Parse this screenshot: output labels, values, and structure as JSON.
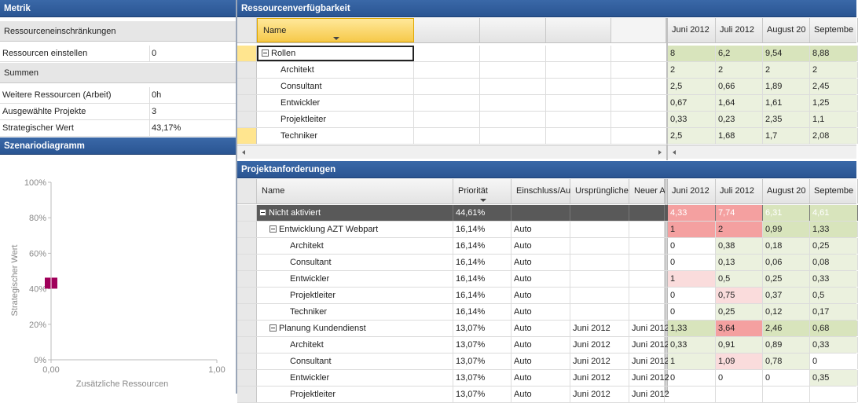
{
  "metric": {
    "title": "Metrik",
    "section_constraints": "Ressourceneinschränkungen",
    "set_resources_label": "Ressourcen einstellen",
    "set_resources_value": "0",
    "section_sums": "Summen",
    "sum_rows": [
      {
        "label": "Weitere Ressourcen (Arbeit)",
        "value": "0h"
      },
      {
        "label": "Ausgewählte Projekte",
        "value": "3"
      },
      {
        "label": "Strategischer Wert",
        "value": "43,17%"
      }
    ]
  },
  "scenario": {
    "title": "Szenariodiagramm",
    "chart_data": {
      "type": "scatter",
      "xlabel": "Zusätzliche Ressourcen",
      "ylabel": "Strategischer Wert",
      "x_ticks": [
        "0,00",
        "1,00"
      ],
      "y_ticks": [
        "0%",
        "20%",
        "40%",
        "60%",
        "80%",
        "100%"
      ],
      "xlim": [
        0,
        1
      ],
      "ylim": [
        0,
        100
      ],
      "points": [
        {
          "x": 0,
          "y": 43.17
        }
      ],
      "marker_color": "#a0005a"
    }
  },
  "availability": {
    "title": "Ressourcenverfügbarkeit",
    "name_header": "Name",
    "months": [
      "Juni 2012",
      "Juli 2012",
      "August 20",
      "Septembe"
    ],
    "rows": [
      {
        "name": "Rollen",
        "group": true,
        "values": [
          "8",
          "6,2",
          "9,54",
          "8,88"
        ],
        "shade": [
          "g",
          "g",
          "g",
          "g"
        ]
      },
      {
        "name": "Architekt",
        "values": [
          "2",
          "2",
          "2",
          "2"
        ],
        "shade": [
          "gl",
          "gl",
          "gl",
          "gl"
        ]
      },
      {
        "name": "Consultant",
        "values": [
          "2,5",
          "0,66",
          "1,89",
          "2,45"
        ],
        "shade": [
          "gl",
          "gl",
          "gl",
          "gl"
        ]
      },
      {
        "name": "Entwickler",
        "values": [
          "0,67",
          "1,64",
          "1,61",
          "1,25"
        ],
        "shade": [
          "gl",
          "gl",
          "gl",
          "gl"
        ]
      },
      {
        "name": "Projektleiter",
        "values": [
          "0,33",
          "0,23",
          "2,35",
          "1,1"
        ],
        "shade": [
          "gl",
          "gl",
          "gl",
          "gl"
        ]
      },
      {
        "name": "Techniker",
        "values": [
          "2,5",
          "1,68",
          "1,7",
          "2,08"
        ],
        "shade": [
          "gl",
          "gl",
          "gl",
          "gl"
        ]
      }
    ]
  },
  "requirements": {
    "title": "Projektanforderungen",
    "headers": {
      "name": "Name",
      "priority": "Priorität",
      "inclusion": "Einschluss/Au",
      "original": "Ursprüngliche",
      "new": "Neuer A"
    },
    "months": [
      "Juni 2012",
      "Juli 2012",
      "August 20",
      "Septembe"
    ],
    "rows": [
      {
        "level": 0,
        "name": "Nicht aktiviert",
        "priority": "44,61%",
        "inclusion": "",
        "original": "",
        "new": "",
        "values": [
          "4,33",
          "7,74",
          "6,31",
          "4,61"
        ],
        "shade": [
          "r",
          "r",
          "g",
          "g"
        ],
        "dark": true
      },
      {
        "level": 1,
        "name": "Entwicklung AZT Webpart",
        "priority": "16,14%",
        "inclusion": "Auto",
        "original": "",
        "new": "",
        "values": [
          "1",
          "2",
          "0,99",
          "1,33"
        ],
        "shade": [
          "r",
          "r",
          "g",
          "g"
        ]
      },
      {
        "level": 2,
        "name": "Architekt",
        "priority": "16,14%",
        "inclusion": "Auto",
        "original": "",
        "new": "",
        "values": [
          "0",
          "0,38",
          "0,18",
          "0,25"
        ],
        "shade": [
          "",
          "gl",
          "gl",
          "gl"
        ]
      },
      {
        "level": 2,
        "name": "Consultant",
        "priority": "16,14%",
        "inclusion": "Auto",
        "original": "",
        "new": "",
        "values": [
          "0",
          "0,13",
          "0,06",
          "0,08"
        ],
        "shade": [
          "",
          "gl",
          "gl",
          "gl"
        ]
      },
      {
        "level": 2,
        "name": "Entwickler",
        "priority": "16,14%",
        "inclusion": "Auto",
        "original": "",
        "new": "",
        "values": [
          "1",
          "0,5",
          "0,25",
          "0,33"
        ],
        "shade": [
          "rl",
          "gl",
          "gl",
          "gl"
        ]
      },
      {
        "level": 2,
        "name": "Projektleiter",
        "priority": "16,14%",
        "inclusion": "Auto",
        "original": "",
        "new": "",
        "values": [
          "0",
          "0,75",
          "0,37",
          "0,5"
        ],
        "shade": [
          "",
          "rl",
          "gl",
          "gl"
        ]
      },
      {
        "level": 2,
        "name": "Techniker",
        "priority": "16,14%",
        "inclusion": "Auto",
        "original": "",
        "new": "",
        "values": [
          "0",
          "0,25",
          "0,12",
          "0,17"
        ],
        "shade": [
          "",
          "gl",
          "gl",
          "gl"
        ]
      },
      {
        "level": 1,
        "name": "Planung Kundendienst",
        "priority": "13,07%",
        "inclusion": "Auto",
        "original": "Juni 2012",
        "new": "Juni 2012",
        "values": [
          "1,33",
          "3,64",
          "2,46",
          "0,68"
        ],
        "shade": [
          "g",
          "r",
          "g",
          "g"
        ]
      },
      {
        "level": 2,
        "name": "Architekt",
        "priority": "13,07%",
        "inclusion": "Auto",
        "original": "Juni 2012",
        "new": "Juni 2012",
        "values": [
          "0,33",
          "0,91",
          "0,89",
          "0,33"
        ],
        "shade": [
          "gl",
          "gl",
          "gl",
          "gl"
        ]
      },
      {
        "level": 2,
        "name": "Consultant",
        "priority": "13,07%",
        "inclusion": "Auto",
        "original": "Juni 2012",
        "new": "Juni 2012",
        "values": [
          "1",
          "1,09",
          "0,78",
          "0"
        ],
        "shade": [
          "gl",
          "rl",
          "gl",
          ""
        ]
      },
      {
        "level": 2,
        "name": "Entwickler",
        "priority": "13,07%",
        "inclusion": "Auto",
        "original": "Juni 2012",
        "new": "Juni 2012",
        "values": [
          "0",
          "0",
          "0",
          "0,35"
        ],
        "shade": [
          "",
          "",
          "",
          "gl"
        ]
      },
      {
        "level": 2,
        "name": "Projektleiter",
        "priority": "13,07%",
        "inclusion": "Auto",
        "original": "Juni 2012",
        "new": "Juni 2012",
        "values": [
          "",
          "",
          "",
          ""
        ],
        "shade": [
          "",
          "",
          "",
          ""
        ]
      }
    ]
  }
}
